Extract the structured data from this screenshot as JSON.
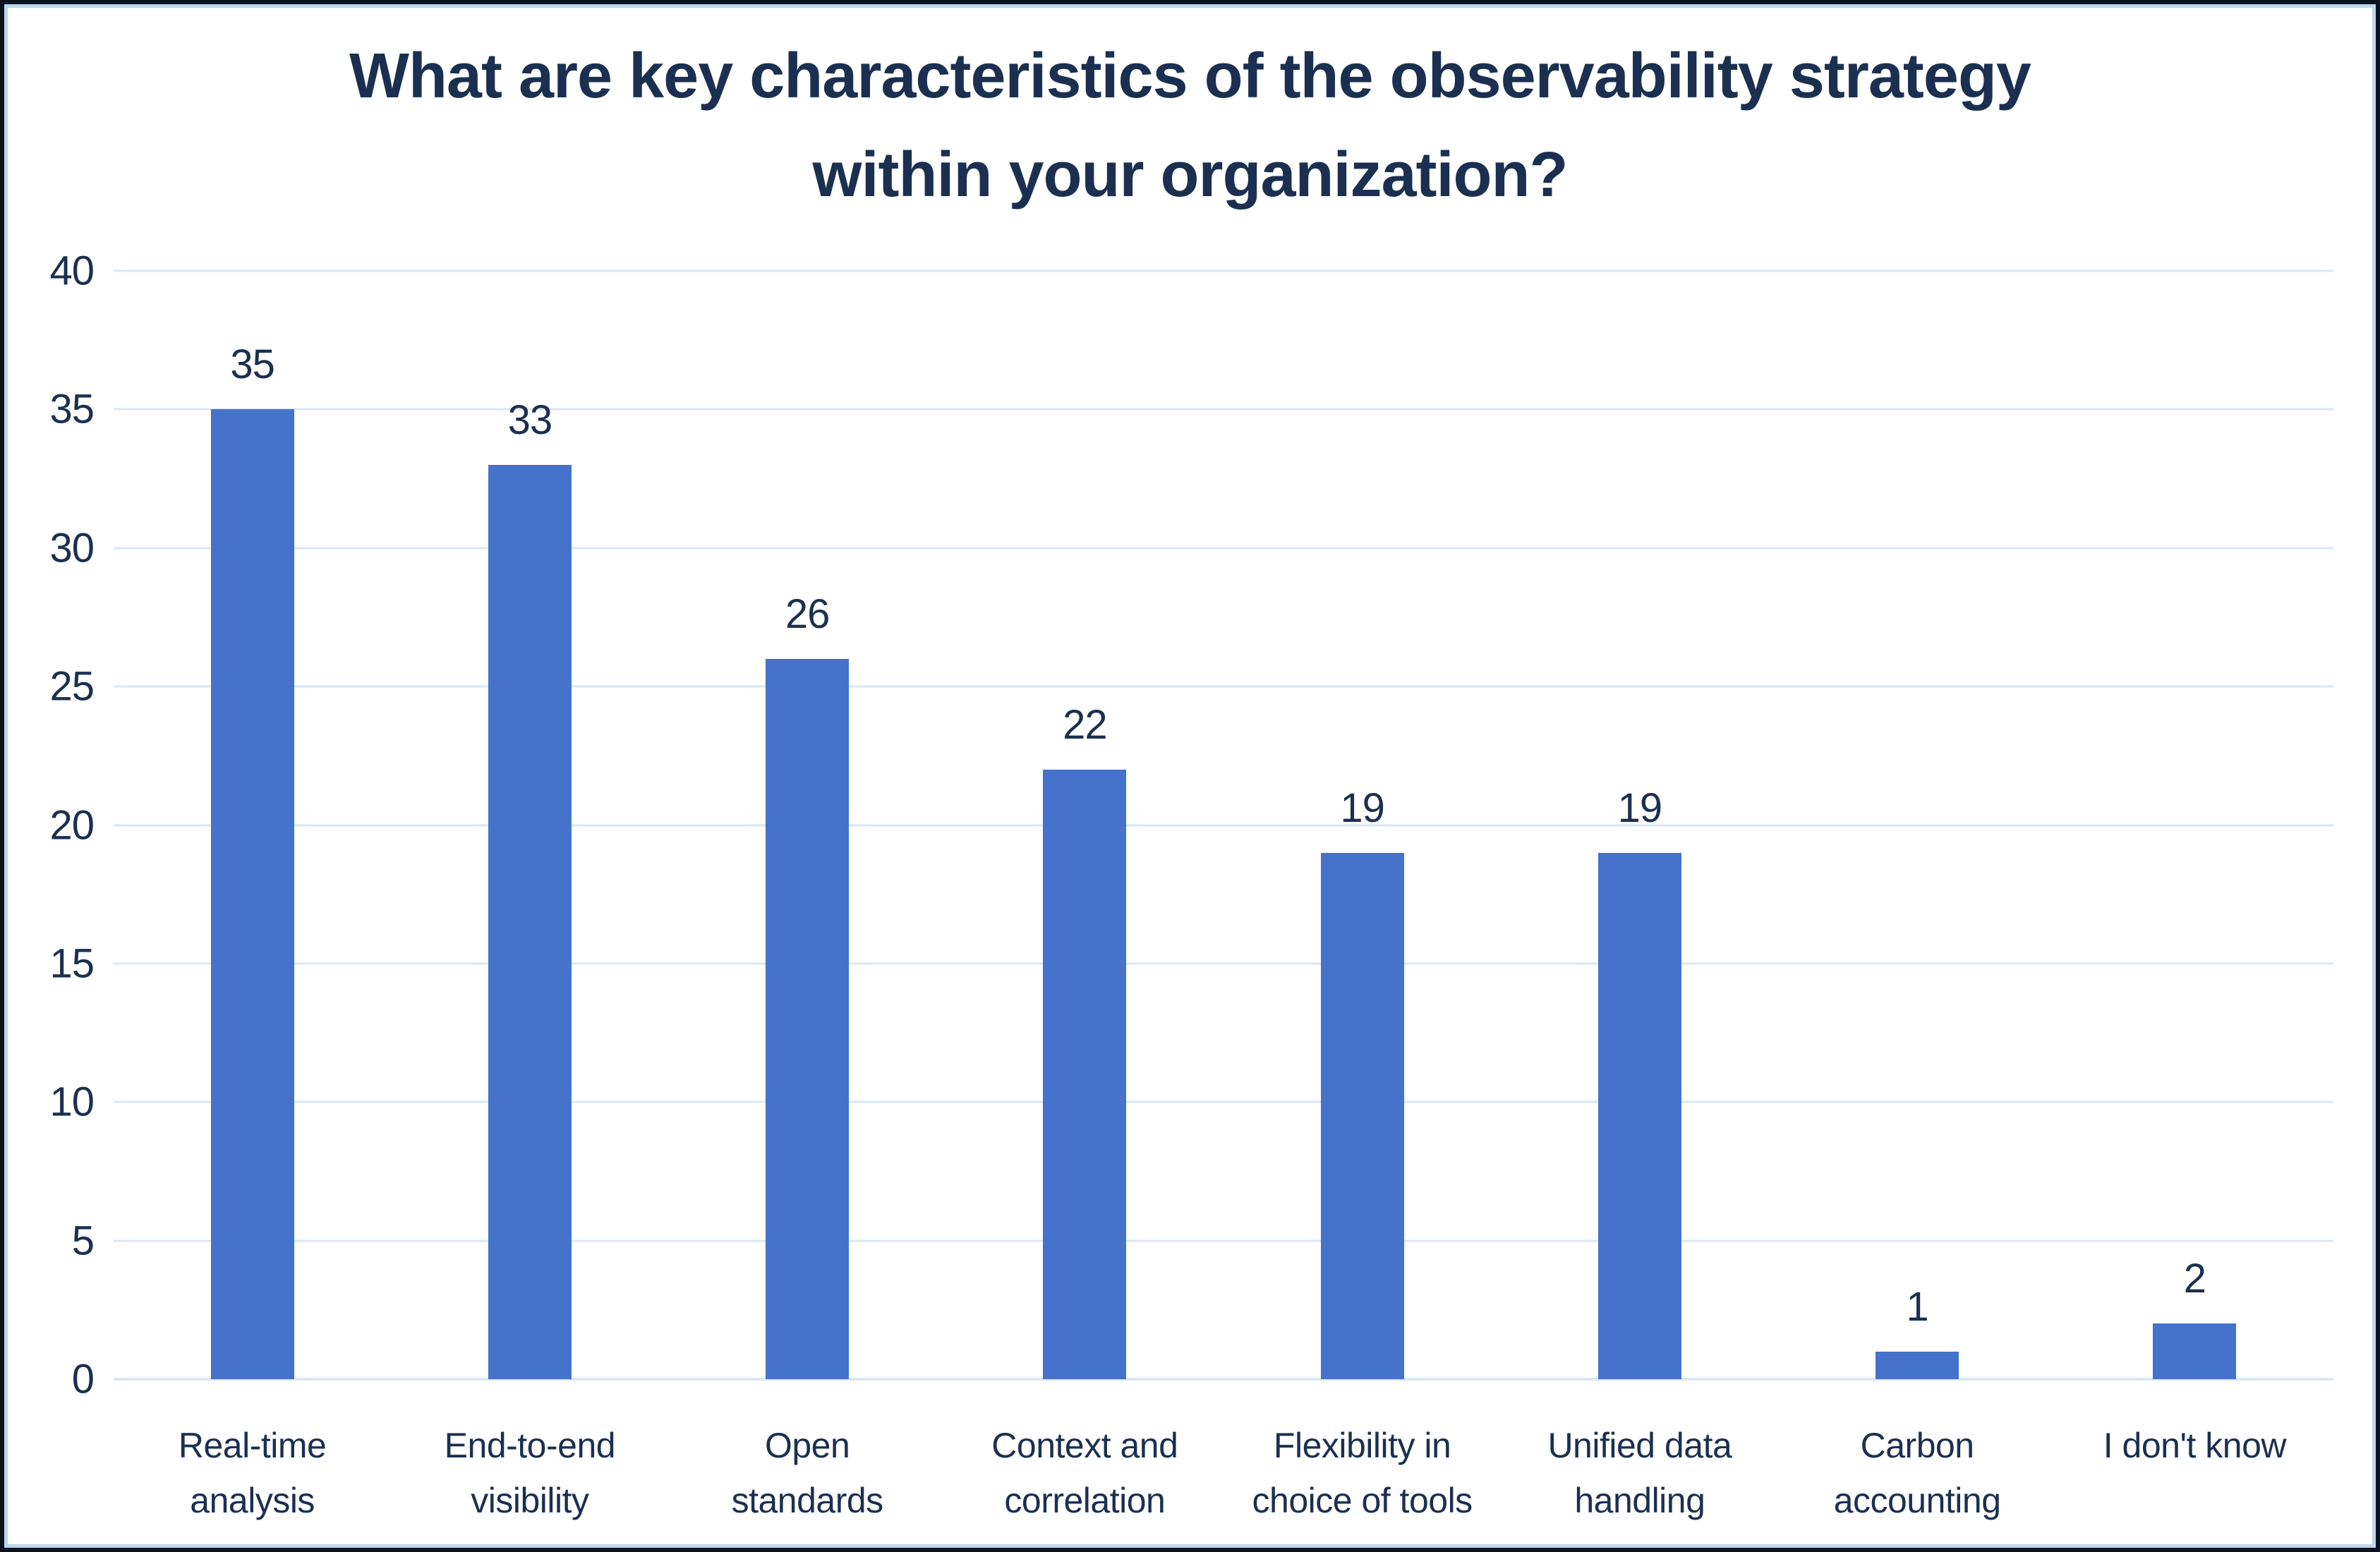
{
  "chart_data": {
    "type": "bar",
    "title": "What are key characteristics of the observability strategy within your organization?",
    "categories": [
      "Real-time analysis",
      "End-to-end visibility",
      "Open standards",
      "Context and correlation",
      "Flexibility in choice of tools",
      "Unified data handling",
      "Carbon accounting",
      "I don't know"
    ],
    "values": [
      35,
      33,
      26,
      22,
      19,
      19,
      1,
      2
    ],
    "xlabel": "",
    "ylabel": "",
    "ylim": [
      0,
      40
    ],
    "yticks": [
      0,
      5,
      10,
      15,
      20,
      25,
      30,
      35,
      40
    ],
    "grid": true,
    "legend": false,
    "data_labels_shown": true,
    "colors": {
      "bar": "#4573CB",
      "text": "#1B3050",
      "gridline": "#D9E7F5",
      "chart_border": "#BDD6EC",
      "outer_border": "#0A1420",
      "background": "#FFFFFF"
    }
  }
}
